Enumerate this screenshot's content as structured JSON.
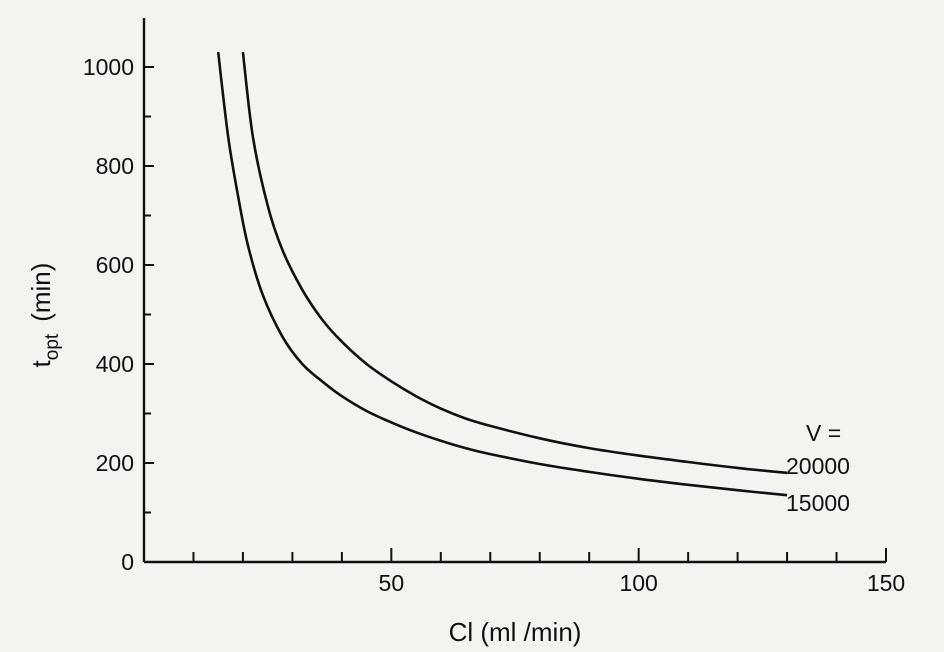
{
  "chart_data": {
    "type": "line",
    "title": "",
    "xlabel": "Cl (ml /min)",
    "ylabel": {
      "base": "t",
      "subscript": "opt",
      "unit": "(min)"
    },
    "xlim": [
      0,
      150
    ],
    "ylim": [
      0,
      1100
    ],
    "x_major_ticks": [
      50,
      100,
      150
    ],
    "x_tick_labels": [
      "50",
      "100",
      "150"
    ],
    "x_minor_step": 10,
    "y_major_ticks": [
      0,
      200,
      400,
      600,
      800,
      1000
    ],
    "y_tick_labels": [
      "0",
      "200",
      "400",
      "600",
      "800",
      "1000"
    ],
    "y_minor_step": 100,
    "grid": false,
    "legend_placement": "right, at curve ends",
    "legend_header": "V =",
    "series": [
      {
        "label": "20000",
        "x": [
          20,
          22,
          25,
          28,
          32,
          36,
          40,
          45,
          50,
          55,
          60,
          65,
          70,
          80,
          90,
          100,
          110,
          120,
          130
        ],
        "y": [
          1030,
          860,
          720,
          630,
          550,
          490,
          445,
          400,
          365,
          335,
          310,
          290,
          275,
          250,
          230,
          215,
          202,
          190,
          180
        ]
      },
      {
        "label": "15000",
        "x": [
          15,
          17,
          19,
          21,
          24,
          28,
          32,
          36,
          40,
          45,
          50,
          55,
          60,
          65,
          70,
          80,
          90,
          100,
          110,
          120,
          130
        ],
        "y": [
          1030,
          860,
          740,
          640,
          540,
          455,
          400,
          365,
          335,
          305,
          282,
          262,
          245,
          230,
          218,
          198,
          182,
          168,
          156,
          145,
          135
        ]
      }
    ]
  }
}
